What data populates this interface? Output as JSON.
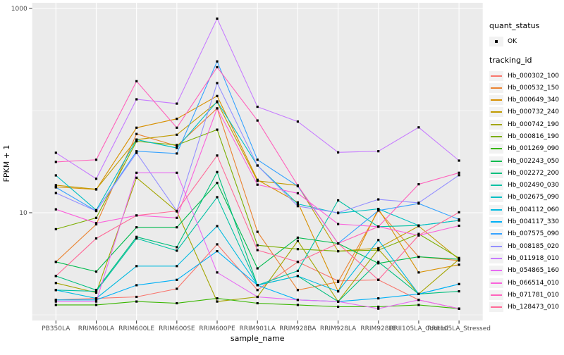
{
  "colors": {
    "panel_bg": "#EBEBEB",
    "grid": "#FFFFFF",
    "axis_text": "#4D4D4D",
    "title_text": "#000000",
    "point": "#000000",
    "legend_key_bg": "#F2F2F2"
  },
  "legend": {
    "quant_status_title": "quant_status",
    "quant_status_items": [
      {
        "label": "OK",
        "icon": "point-marker"
      }
    ],
    "tracking_title": "tracking_id"
  },
  "axes": {
    "y_tick_labels": [
      "10",
      "1000"
    ],
    "x_tick_labels": [
      "PB350LA",
      "RRIM600LA",
      "RRIM600LE",
      "RRIM600SE",
      "RRIM600PE",
      "RRIM901LA",
      "RRIM928BA",
      "RRIM928LA",
      "RRIM928LE",
      "RRII105LA_Control",
      "RRII105LA_Stressed"
    ]
  },
  "chart_data": {
    "type": "line",
    "title": "",
    "xlabel": "sample_name",
    "ylabel": "FPKM + 1",
    "y_scale": "log10",
    "ylim": [
      0.88,
      1030
    ],
    "y_major_breaks": [
      10,
      1000
    ],
    "y_minor_breaks": [
      1,
      100
    ],
    "grid": "on",
    "legend_position": "right",
    "point_shape": "filled-square-black",
    "categories": [
      "PB350LA",
      "RRIM600LA",
      "RRIM600LE",
      "RRIM600SE",
      "RRIM600PE",
      "RRIM901LA",
      "RRIM928BA",
      "RRIM928LA",
      "RRIM928LE",
      "RRII105LA_Control",
      "RRII105LA_Stressed"
    ],
    "series": [
      {
        "name": "Hb_000302_100",
        "color": "#F8766D",
        "values": [
          1.4,
          1.45,
          1.5,
          1.8,
          4.9,
          1.75,
          3.3,
          2.15,
          2.2,
          1.4,
          1.15
        ]
      },
      {
        "name": "Hb_000532_150",
        "color": "#EA8331",
        "values": [
          3.3,
          7.7,
          59,
          45,
          105,
          6.5,
          1.75,
          2.1,
          10.5,
          3.7,
          3.4
        ]
      },
      {
        "name": "Hb_000649_340",
        "color": "#D89000",
        "values": [
          17.9,
          16.9,
          68,
          83,
          139,
          21,
          12.6,
          1.7,
          10.9,
          2.6,
          3.1
        ]
      },
      {
        "name": "Hb_000732_240",
        "color": "#C09B00",
        "values": [
          18.6,
          17,
          52,
          58,
          121,
          20.5,
          18.5,
          4.2,
          4.5,
          7.4,
          3.5
        ]
      },
      {
        "name": "Hb_000742_190",
        "color": "#A3A500",
        "values": [
          2.05,
          1.65,
          22,
          10.3,
          1.35,
          1.5,
          5.3,
          1.35,
          4.4,
          1.6,
          3.5
        ]
      },
      {
        "name": "Hb_000816_190",
        "color": "#7CAE00",
        "values": [
          6.9,
          8.9,
          50,
          46,
          65,
          4.8,
          4.4,
          4.2,
          4.3,
          6.2,
          3.6
        ]
      },
      {
        "name": "Hb_001269_090",
        "color": "#39B600",
        "values": [
          1.25,
          1.25,
          1.35,
          1.3,
          1.45,
          1.3,
          1.25,
          1.2,
          1.2,
          1.25,
          1.15
        ]
      },
      {
        "name": "Hb_002243_050",
        "color": "#00BB4E",
        "values": [
          3.3,
          2.65,
          7.2,
          7.2,
          19.6,
          2.85,
          5.7,
          5.0,
          3.2,
          3.7,
          3.5
        ]
      },
      {
        "name": "Hb_002272_200",
        "color": "#00BF7D",
        "values": [
          2.4,
          1.75,
          5.8,
          4.6,
          25,
          1.95,
          2.4,
          1.35,
          3.3,
          1.6,
          1.7
        ]
      },
      {
        "name": "Hb_002490_030",
        "color": "#00C1A3",
        "values": [
          1.75,
          1.7,
          5.6,
          4.25,
          14.2,
          1.95,
          2.7,
          13.2,
          7.3,
          7.5,
          8.4
        ]
      },
      {
        "name": "Hb_002675_090",
        "color": "#00BFC4",
        "values": [
          23.2,
          10.6,
          52,
          43,
          123,
          29,
          12.2,
          9.9,
          10.9,
          7.5,
          8.4
        ]
      },
      {
        "name": "Hb_004112_060",
        "color": "#00BAE0",
        "values": [
          1.75,
          1.45,
          3.0,
          3.0,
          7.4,
          1.95,
          2.4,
          1.7,
          5.4,
          1.6,
          2.0
        ]
      },
      {
        "name": "Hb_004117_330",
        "color": "#00B0F6",
        "values": [
          1.4,
          1.4,
          1.95,
          2.2,
          4.2,
          1.95,
          1.4,
          1.35,
          1.45,
          1.6,
          2.0
        ]
      },
      {
        "name": "Hb_007575_090",
        "color": "#35A2FF",
        "values": [
          17.7,
          10.4,
          40,
          38,
          303,
          33,
          18.2,
          5.0,
          10.5,
          12.3,
          8.6
        ]
      },
      {
        "name": "Hb_008185_020",
        "color": "#9590FF",
        "values": [
          15.6,
          10.4,
          38.5,
          10.4,
          186,
          29,
          11.6,
          10.0,
          13.5,
          12.5,
          23.3
        ]
      },
      {
        "name": "Hb_011918_010",
        "color": "#C77CFF",
        "values": [
          38.6,
          21.5,
          129,
          117,
          795,
          109,
          78,
          39,
          40,
          68.5,
          32.4
        ]
      },
      {
        "name": "Hb_054865_160",
        "color": "#E76BF3",
        "values": [
          1.35,
          1.35,
          24.6,
          24.6,
          2.6,
          1.5,
          1.4,
          1.35,
          1.15,
          1.4,
          1.15
        ]
      },
      {
        "name": "Hb_066514_010",
        "color": "#FA62DB",
        "values": [
          10.8,
          7.9,
          9.4,
          8.9,
          105,
          18.8,
          15.5,
          7.75,
          7.3,
          6.0,
          7.45
        ]
      },
      {
        "name": "Hb_071781_010",
        "color": "#FF62BC",
        "values": [
          31.4,
          33,
          194,
          68,
          266,
          80,
          18.5,
          5.0,
          7.3,
          19,
          24.6
        ]
      },
      {
        "name": "Hb_128473_010",
        "color": "#FF6A98",
        "values": [
          2.4,
          5.6,
          9.4,
          10.4,
          36.3,
          4.3,
          3.3,
          5.0,
          2.2,
          6.0,
          10.1
        ]
      }
    ]
  }
}
